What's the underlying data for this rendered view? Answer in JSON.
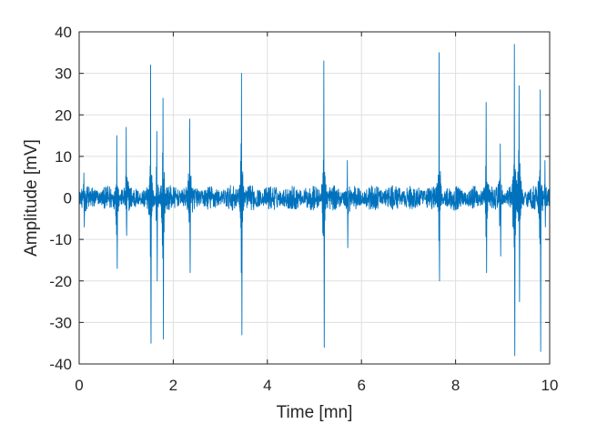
{
  "chart_data": {
    "type": "line",
    "xlabel": "Time [mn]",
    "ylabel": "Amplitude [mV]",
    "xlim": [
      0,
      10
    ],
    "ylim": [
      -40,
      40
    ],
    "xticks": [
      0,
      2,
      4,
      6,
      8,
      10
    ],
    "yticks": [
      -40,
      -30,
      -20,
      -10,
      0,
      10,
      20,
      30,
      40
    ],
    "xtick_labels": [
      "0",
      "2",
      "4",
      "6",
      "8",
      "10"
    ],
    "ytick_labels": [
      "-40",
      "-30",
      "-20",
      "-10",
      "0",
      "10",
      "20",
      "30",
      "40"
    ],
    "grid": true,
    "line_color": "#0072BD",
    "baseline_noise_amplitude": 3,
    "spikes": [
      {
        "x": 0.1,
        "max": 6,
        "min": -7
      },
      {
        "x": 0.8,
        "max": 15,
        "min": -17
      },
      {
        "x": 1.0,
        "max": 17,
        "min": -9
      },
      {
        "x": 1.52,
        "max": 32,
        "min": -35
      },
      {
        "x": 1.65,
        "max": 16,
        "min": -20
      },
      {
        "x": 1.78,
        "max": 24,
        "min": -34
      },
      {
        "x": 2.35,
        "max": 19,
        "min": -18
      },
      {
        "x": 3.45,
        "max": 30,
        "min": -33
      },
      {
        "x": 5.2,
        "max": 33,
        "min": -36
      },
      {
        "x": 5.7,
        "max": 9,
        "min": -12
      },
      {
        "x": 7.65,
        "max": 35,
        "min": -20
      },
      {
        "x": 8.65,
        "max": 23,
        "min": -18
      },
      {
        "x": 8.95,
        "max": 13,
        "min": -14
      },
      {
        "x": 9.25,
        "max": 37,
        "min": -38
      },
      {
        "x": 9.35,
        "max": 27,
        "min": -25
      },
      {
        "x": 9.8,
        "max": 26,
        "min": -37
      },
      {
        "x": 9.9,
        "max": 9,
        "min": -7
      }
    ]
  }
}
